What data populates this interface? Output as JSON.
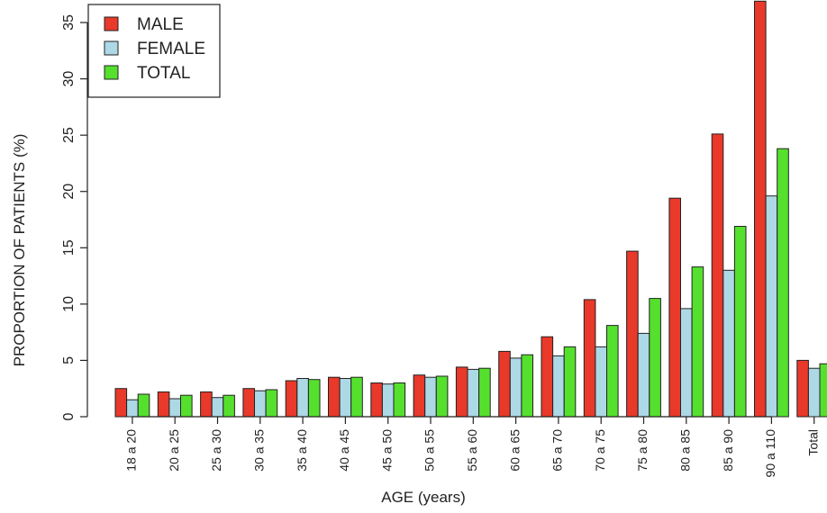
{
  "chart_data": {
    "type": "bar",
    "title": "",
    "xlabel": "AGE (years)",
    "ylabel": "PROPORTION OF PATIENTS (%)",
    "ylim": [
      0,
      37
    ],
    "yticks": [
      0,
      5,
      10,
      15,
      20,
      25,
      30,
      35
    ],
    "grid": false,
    "legend_position": "top-left",
    "categories": [
      "18 a 20",
      "20 a 25",
      "25 a 30",
      "30 a 35",
      "35 a 40",
      "40 a 45",
      "45 a 50",
      "50 a 55",
      "55 a 60",
      "60 a 65",
      "65 a 70",
      "70 a 75",
      "75 a 80",
      "80 a 85",
      "85 a 90",
      "90 a 110",
      "Total"
    ],
    "series": [
      {
        "name": "MALE",
        "color": "#e8392a",
        "values": [
          2.5,
          2.2,
          2.2,
          2.5,
          3.2,
          3.5,
          3.0,
          3.7,
          4.4,
          5.8,
          7.1,
          10.4,
          14.7,
          19.4,
          25.1,
          36.9,
          5.0
        ]
      },
      {
        "name": "FEMALE",
        "color": "#add8e6",
        "values": [
          1.5,
          1.6,
          1.7,
          2.3,
          3.4,
          3.4,
          2.9,
          3.5,
          4.2,
          5.2,
          5.4,
          6.2,
          7.4,
          9.6,
          13.0,
          19.6,
          4.3
        ]
      },
      {
        "name": "TOTAL",
        "color": "#55e02e",
        "values": [
          2.0,
          1.9,
          1.9,
          2.4,
          3.3,
          3.5,
          3.0,
          3.6,
          4.3,
          5.5,
          6.2,
          8.1,
          10.5,
          13.3,
          16.9,
          23.8,
          4.7
        ]
      }
    ]
  }
}
